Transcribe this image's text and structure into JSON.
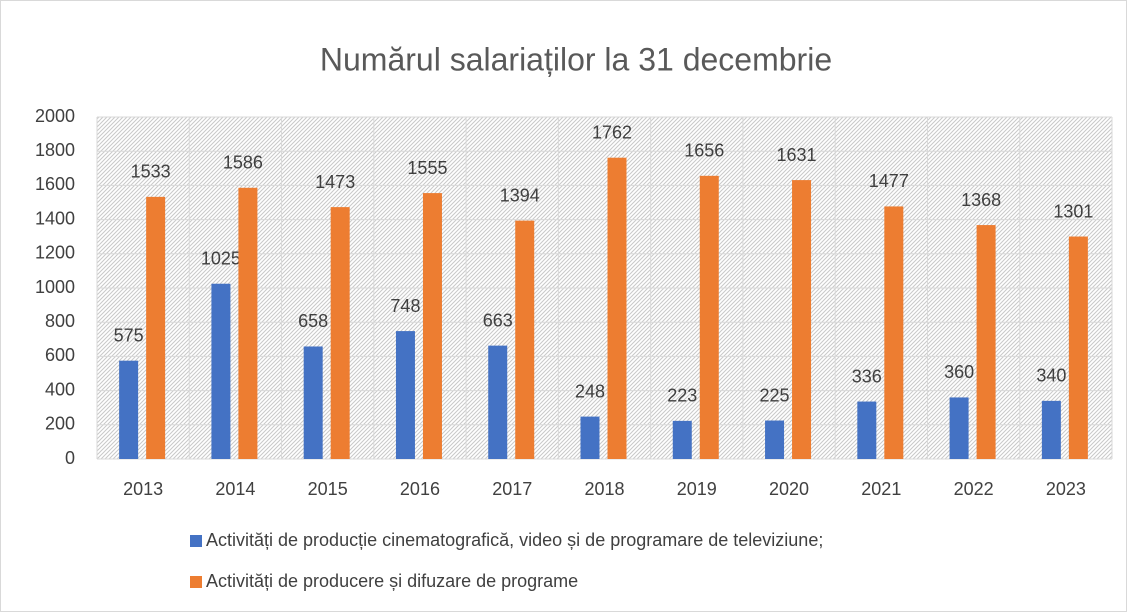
{
  "chart_data": {
    "type": "bar",
    "title": "Numărul salariaților la 31 decembrie",
    "categories": [
      "2013",
      "2014",
      "2015",
      "2016",
      "2017",
      "2018",
      "2019",
      "2020",
      "2021",
      "2022",
      "2023"
    ],
    "series": [
      {
        "name": "Activități de producție cinematografică, video și de programare de televiziune;",
        "color": "#4472c4",
        "values": [
          575,
          1025,
          658,
          748,
          663,
          248,
          223,
          225,
          336,
          360,
          340
        ]
      },
      {
        "name": "Activități de producere și difuzare de programe",
        "color": "#ed7d31",
        "values": [
          1533,
          1586,
          1473,
          1555,
          1394,
          1762,
          1656,
          1631,
          1477,
          1368,
          1301
        ]
      }
    ],
    "ylim": [
      0,
      2000
    ],
    "yticks": [
      0,
      200,
      400,
      600,
      800,
      1000,
      1200,
      1400,
      1600,
      1800,
      2000
    ],
    "grid": true,
    "legend": "bottom"
  }
}
